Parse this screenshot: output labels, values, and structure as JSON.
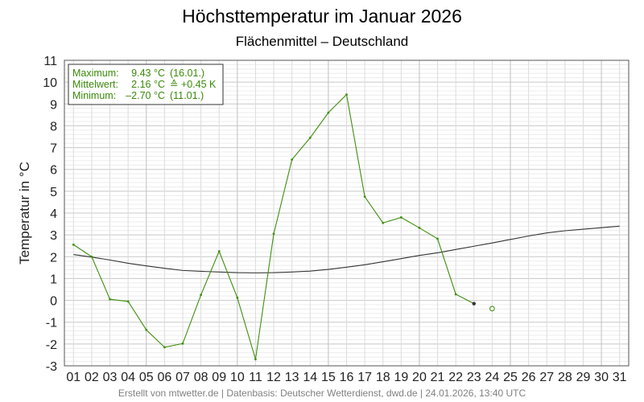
{
  "chart_data": {
    "type": "line",
    "title": "Höchsttemperatur im Januar 2026",
    "subtitle": "Flächenmittel – Deutschland",
    "ylabel": "Temperatur in °C",
    "xlabel": "",
    "ylim": [
      -3,
      11
    ],
    "yticks": [
      "-3",
      "-2",
      "-1",
      "0",
      "1",
      "2",
      "3",
      "4",
      "5",
      "6",
      "7",
      "8",
      "9",
      "10",
      "11"
    ],
    "categories": [
      "01",
      "02",
      "03",
      "04",
      "05",
      "06",
      "07",
      "08",
      "09",
      "10",
      "11",
      "12",
      "13",
      "14",
      "15",
      "16",
      "17",
      "18",
      "19",
      "20",
      "21",
      "22",
      "23",
      "24",
      "25",
      "26",
      "27",
      "28",
      "29",
      "30",
      "31"
    ],
    "grid": true,
    "colors": {
      "observed": "#3f8f0f",
      "mean": "#333333",
      "latest": "#333333"
    },
    "series": [
      {
        "key": "observed",
        "values": [
          2.55,
          2.0,
          0.05,
          -0.05,
          -1.35,
          -2.15,
          -1.98,
          0.25,
          2.25,
          0.12,
          -2.7,
          3.05,
          6.45,
          7.45,
          8.6,
          9.43,
          4.75,
          3.55,
          3.8,
          3.32,
          2.82,
          0.28,
          -0.15,
          null,
          null,
          null,
          null,
          null,
          null,
          null,
          null
        ]
      },
      {
        "key": "mean",
        "values": [
          2.1,
          1.98,
          1.85,
          1.7,
          1.58,
          1.47,
          1.37,
          1.33,
          1.3,
          1.27,
          1.26,
          1.27,
          1.3,
          1.34,
          1.42,
          1.52,
          1.63,
          1.77,
          1.91,
          2.06,
          2.18,
          2.33,
          2.48,
          2.63,
          2.79,
          2.95,
          3.09,
          3.19,
          3.26,
          3.33,
          3.4
        ]
      }
    ],
    "forecast": {
      "day": "24",
      "value": -0.38
    },
    "legend": {
      "position": "top-left",
      "rows": [
        [
          "Maximum:",
          "9.43 °C",
          "(16.01.)"
        ],
        [
          "Mittelwert:",
          "2.16 °C",
          "≙ +0.45 K"
        ],
        [
          "Minimum:",
          "–2.70 °C",
          "(11.01.)"
        ]
      ]
    },
    "footer": "Erstellt von mtwetter.de | Datenbasis: Deutscher Wetterdienst, dwd.de | 24.01.2026, 13:40 UTC"
  }
}
